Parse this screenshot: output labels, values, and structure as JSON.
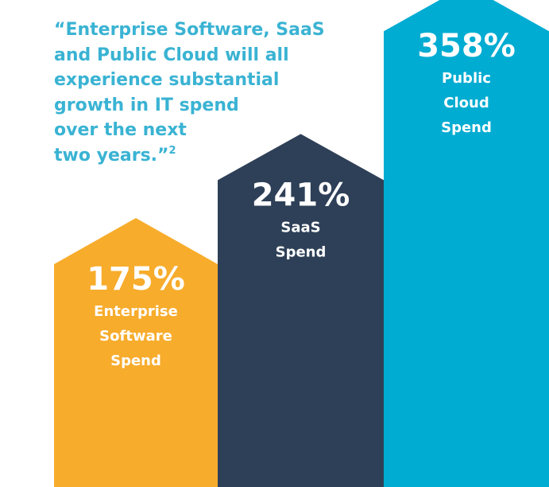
{
  "quote": {
    "lines": [
      "“Enterprise Software, SaaS",
      "and Public Cloud will all",
      "experience substantial",
      "growth in IT spend",
      "over the next",
      "two years.”"
    ],
    "footnote": "2"
  },
  "colors": {
    "quote_text": "#3ab3d3",
    "enterprise": "#f7ac2c",
    "saas": "#2e4057",
    "cloud": "#00acd2",
    "label_text": "#ffffff"
  },
  "chart_data": {
    "type": "bar",
    "categories": [
      "Enterprise Software Spend",
      "SaaS Spend",
      "Public Cloud Spend"
    ],
    "values": [
      175,
      241,
      358
    ],
    "value_labels": [
      "175%",
      "241%",
      "358%"
    ],
    "label_lines": [
      [
        "Enterprise",
        "Software",
        "Spend"
      ],
      [
        "SaaS",
        "Spend"
      ],
      [
        "Public",
        "Cloud",
        "Spend"
      ]
    ],
    "colors": [
      "#f7ac2c",
      "#2e4057",
      "#00acd2"
    ],
    "unit": "%",
    "bar_shape": "arrow-up",
    "title": "",
    "xlabel": "",
    "ylabel": "",
    "grid": false,
    "legend": "none"
  }
}
